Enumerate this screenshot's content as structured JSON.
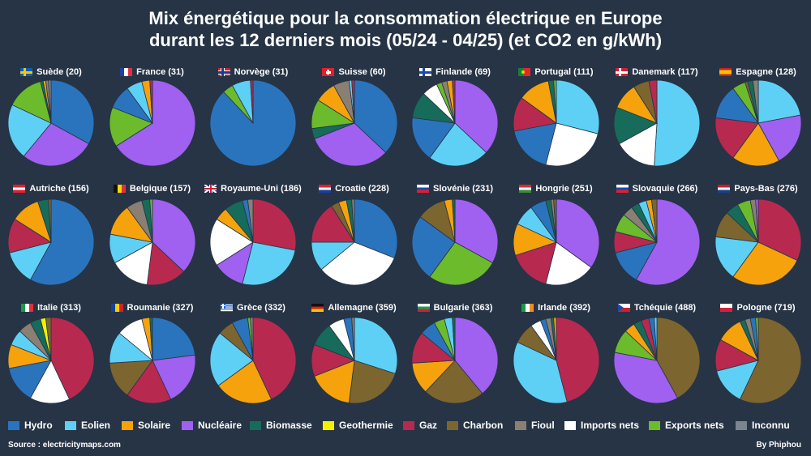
{
  "chart_data": {
    "type": "pie",
    "title_line1": "Mix énergétique pour la consommation électrique en Europe",
    "title_line2": "durant les 12 derniers mois (05/24 - 04/25) (et CO2 en g/kWh)",
    "source": "Source : electricitymaps.com",
    "author": "By Phiphou",
    "categories": [
      {
        "key": "hydro",
        "label": "Hydro",
        "color": "#2a74be"
      },
      {
        "key": "eolien",
        "label": "Eolien",
        "color": "#5fd0f5"
      },
      {
        "key": "solaire",
        "label": "Solaire",
        "color": "#f5a20c"
      },
      {
        "key": "nucleaire",
        "label": "Nucléaire",
        "color": "#a060f0"
      },
      {
        "key": "biomasse",
        "label": "Biomasse",
        "color": "#176b5a"
      },
      {
        "key": "geothermie",
        "label": "Geothermie",
        "color": "#f5f000"
      },
      {
        "key": "gaz",
        "label": "Gaz",
        "color": "#b8294f"
      },
      {
        "key": "charbon",
        "label": "Charbon",
        "color": "#7d6530"
      },
      {
        "key": "fioul",
        "label": "Fioul",
        "color": "#8a7f72"
      },
      {
        "key": "imports",
        "label": "Imports nets",
        "color": "#ffffff"
      },
      {
        "key": "exports",
        "label": "Exports nets",
        "color": "#6cbb2c"
      },
      {
        "key": "inconnu",
        "label": "Inconnu",
        "color": "#7a8590"
      }
    ],
    "countries": [
      {
        "name": "Suède (20)",
        "flag": "se",
        "slices": [
          [
            "hydro",
            33
          ],
          [
            "nucleaire",
            28
          ],
          [
            "eolien",
            21
          ],
          [
            "exports",
            14
          ],
          [
            "biomasse",
            1
          ],
          [
            "solaire",
            1
          ],
          [
            "fioul",
            1
          ],
          [
            "inconnu",
            1
          ]
        ]
      },
      {
        "name": "France (31)",
        "flag": "fr",
        "slices": [
          [
            "nucleaire",
            66
          ],
          [
            "exports",
            15
          ],
          [
            "hydro",
            9
          ],
          [
            "eolien",
            6
          ],
          [
            "solaire",
            3
          ],
          [
            "gaz",
            1
          ]
        ]
      },
      {
        "name": "Norvège (31)",
        "flag": "no",
        "slices": [
          [
            "hydro",
            88
          ],
          [
            "exports",
            4
          ],
          [
            "eolien",
            7
          ],
          [
            "gaz",
            1
          ]
        ]
      },
      {
        "name": "Suisse (60)",
        "flag": "ch",
        "slices": [
          [
            "hydro",
            37
          ],
          [
            "nucleaire",
            32
          ],
          [
            "biomasse",
            4
          ],
          [
            "exports",
            11
          ],
          [
            "solaire",
            8
          ],
          [
            "fioul",
            6
          ],
          [
            "eolien",
            1
          ],
          [
            "gaz",
            1
          ]
        ]
      },
      {
        "name": "Finlande (69)",
        "flag": "fi",
        "slices": [
          [
            "nucleaire",
            37
          ],
          [
            "eolien",
            23
          ],
          [
            "hydro",
            17
          ],
          [
            "biomasse",
            10
          ],
          [
            "imports",
            6
          ],
          [
            "exports",
            2
          ],
          [
            "fioul",
            2
          ],
          [
            "solaire",
            2
          ],
          [
            "gaz",
            1
          ]
        ]
      },
      {
        "name": "Portugal (111)",
        "flag": "pt",
        "slices": [
          [
            "eolien",
            29
          ],
          [
            "imports",
            25
          ],
          [
            "hydro",
            18
          ],
          [
            "gaz",
            13
          ],
          [
            "solaire",
            12
          ],
          [
            "biomasse",
            2
          ],
          [
            "exports",
            1
          ]
        ]
      },
      {
        "name": "Danemark (117)",
        "flag": "dk",
        "slices": [
          [
            "eolien",
            51
          ],
          [
            "imports",
            16
          ],
          [
            "biomasse",
            14
          ],
          [
            "solaire",
            10
          ],
          [
            "charbon",
            6
          ],
          [
            "gaz",
            3
          ]
        ]
      },
      {
        "name": "Espagne (128)",
        "flag": "es",
        "slices": [
          [
            "eolien",
            22
          ],
          [
            "nucleaire",
            20
          ],
          [
            "solaire",
            18
          ],
          [
            "gaz",
            17
          ],
          [
            "hydro",
            13
          ],
          [
            "exports",
            5
          ],
          [
            "charbon",
            1
          ],
          [
            "biomasse",
            2
          ],
          [
            "fioul",
            2
          ]
        ]
      },
      {
        "name": "Autriche (156)",
        "flag": "at",
        "slices": [
          [
            "hydro",
            58
          ],
          [
            "eolien",
            13
          ],
          [
            "gaz",
            13
          ],
          [
            "solaire",
            11
          ],
          [
            "biomasse",
            4
          ],
          [
            "charbon",
            1
          ]
        ]
      },
      {
        "name": "Belgique (157)",
        "flag": "be",
        "slices": [
          [
            "nucleaire",
            37
          ],
          [
            "gaz",
            15
          ],
          [
            "imports",
            15
          ],
          [
            "eolien",
            11
          ],
          [
            "solaire",
            12
          ],
          [
            "fioul",
            6
          ],
          [
            "biomasse",
            3
          ],
          [
            "exports",
            1
          ]
        ]
      },
      {
        "name": "Royaume-Uni (186)",
        "flag": "gb",
        "slices": [
          [
            "gaz",
            28
          ],
          [
            "eolien",
            26
          ],
          [
            "nucleaire",
            12
          ],
          [
            "imports",
            18
          ],
          [
            "solaire",
            5
          ],
          [
            "biomasse",
            7
          ],
          [
            "hydro",
            2
          ],
          [
            "fioul",
            2
          ]
        ]
      },
      {
        "name": "Croatie (228)",
        "flag": "hr",
        "slices": [
          [
            "hydro",
            31
          ],
          [
            "imports",
            33
          ],
          [
            "eolien",
            11
          ],
          [
            "gaz",
            16
          ],
          [
            "charbon",
            3
          ],
          [
            "solaire",
            3
          ],
          [
            "biomasse",
            2
          ],
          [
            "fioul",
            1
          ]
        ]
      },
      {
        "name": "Slovénie (231)",
        "flag": "si",
        "slices": [
          [
            "nucleaire",
            33
          ],
          [
            "exports",
            27
          ],
          [
            "hydro",
            25
          ],
          [
            "charbon",
            11
          ],
          [
            "solaire",
            3
          ],
          [
            "biomasse",
            1
          ]
        ]
      },
      {
        "name": "Hongrie (251)",
        "flag": "hu",
        "slices": [
          [
            "nucleaire",
            35
          ],
          [
            "imports",
            19
          ],
          [
            "gaz",
            16
          ],
          [
            "solaire",
            12
          ],
          [
            "eolien",
            8
          ],
          [
            "hydro",
            6
          ],
          [
            "biomasse",
            2
          ],
          [
            "fioul",
            1
          ],
          [
            "charbon",
            1
          ]
        ]
      },
      {
        "name": "Slovaquie (266)",
        "flag": "sk",
        "slices": [
          [
            "nucleaire",
            58
          ],
          [
            "hydro",
            13
          ],
          [
            "gaz",
            8
          ],
          [
            "exports",
            7
          ],
          [
            "fioul",
            4
          ],
          [
            "biomasse",
            3
          ],
          [
            "eolien",
            3
          ],
          [
            "solaire",
            2
          ],
          [
            "charbon",
            2
          ]
        ]
      },
      {
        "name": "Pays-Bas (276)",
        "flag": "nl",
        "slices": [
          [
            "gaz",
            32
          ],
          [
            "solaire",
            28
          ],
          [
            "eolien",
            17
          ],
          [
            "charbon",
            10
          ],
          [
            "biomasse",
            5
          ],
          [
            "exports",
            5
          ],
          [
            "fioul",
            2
          ],
          [
            "nucleaire",
            1
          ]
        ]
      },
      {
        "name": "Italie (313)",
        "flag": "it",
        "slices": [
          [
            "gaz",
            43
          ],
          [
            "imports",
            15
          ],
          [
            "hydro",
            14
          ],
          [
            "solaire",
            9
          ],
          [
            "eolien",
            6
          ],
          [
            "fioul",
            5
          ],
          [
            "biomasse",
            4
          ],
          [
            "geothermie",
            2
          ],
          [
            "charbon",
            2
          ]
        ]
      },
      {
        "name": "Roumanie (327)",
        "flag": "ro",
        "slices": [
          [
            "hydro",
            23
          ],
          [
            "nucleaire",
            20
          ],
          [
            "gaz",
            17
          ],
          [
            "charbon",
            14
          ],
          [
            "eolien",
            12
          ],
          [
            "imports",
            10
          ],
          [
            "solaire",
            3
          ],
          [
            "biomasse",
            1
          ]
        ]
      },
      {
        "name": "Grèce (332)",
        "flag": "gr",
        "slices": [
          [
            "gaz",
            43
          ],
          [
            "solaire",
            22
          ],
          [
            "eolien",
            21
          ],
          [
            "charbon",
            6
          ],
          [
            "hydro",
            6
          ],
          [
            "exports",
            1
          ],
          [
            "fioul",
            1
          ]
        ]
      },
      {
        "name": "Allemagne (359)",
        "flag": "de",
        "slices": [
          [
            "eolien",
            30
          ],
          [
            "charbon",
            22
          ],
          [
            "solaire",
            17
          ],
          [
            "gaz",
            12
          ],
          [
            "biomasse",
            9
          ],
          [
            "imports",
            6
          ],
          [
            "hydro",
            3
          ],
          [
            "fioul",
            1
          ]
        ]
      },
      {
        "name": "Bulgarie (363)",
        "flag": "bg",
        "slices": [
          [
            "nucleaire",
            39
          ],
          [
            "charbon",
            23
          ],
          [
            "solaire",
            12
          ],
          [
            "gaz",
            12
          ],
          [
            "hydro",
            6
          ],
          [
            "exports",
            4
          ],
          [
            "eolien",
            3
          ],
          [
            "biomasse",
            1
          ]
        ]
      },
      {
        "name": "Irlande (392)",
        "flag": "ie",
        "slices": [
          [
            "gaz",
            46
          ],
          [
            "eolien",
            36
          ],
          [
            "charbon",
            8
          ],
          [
            "imports",
            4
          ],
          [
            "hydro",
            2
          ],
          [
            "fioul",
            2
          ],
          [
            "biomasse",
            1
          ],
          [
            "solaire",
            1
          ]
        ]
      },
      {
        "name": "Tchéquie (488)",
        "flag": "cz",
        "slices": [
          [
            "charbon",
            42
          ],
          [
            "nucleaire",
            36
          ],
          [
            "exports",
            9
          ],
          [
            "solaire",
            4
          ],
          [
            "biomasse",
            3
          ],
          [
            "gaz",
            3
          ],
          [
            "hydro",
            2
          ],
          [
            "eolien",
            1
          ]
        ]
      },
      {
        "name": "Pologne (719)",
        "flag": "pl",
        "slices": [
          [
            "charbon",
            57
          ],
          [
            "eolien",
            14
          ],
          [
            "gaz",
            12
          ],
          [
            "solaire",
            10
          ],
          [
            "biomasse",
            2
          ],
          [
            "fioul",
            2
          ],
          [
            "hydro",
            2
          ],
          [
            "exports",
            1
          ]
        ]
      }
    ]
  }
}
